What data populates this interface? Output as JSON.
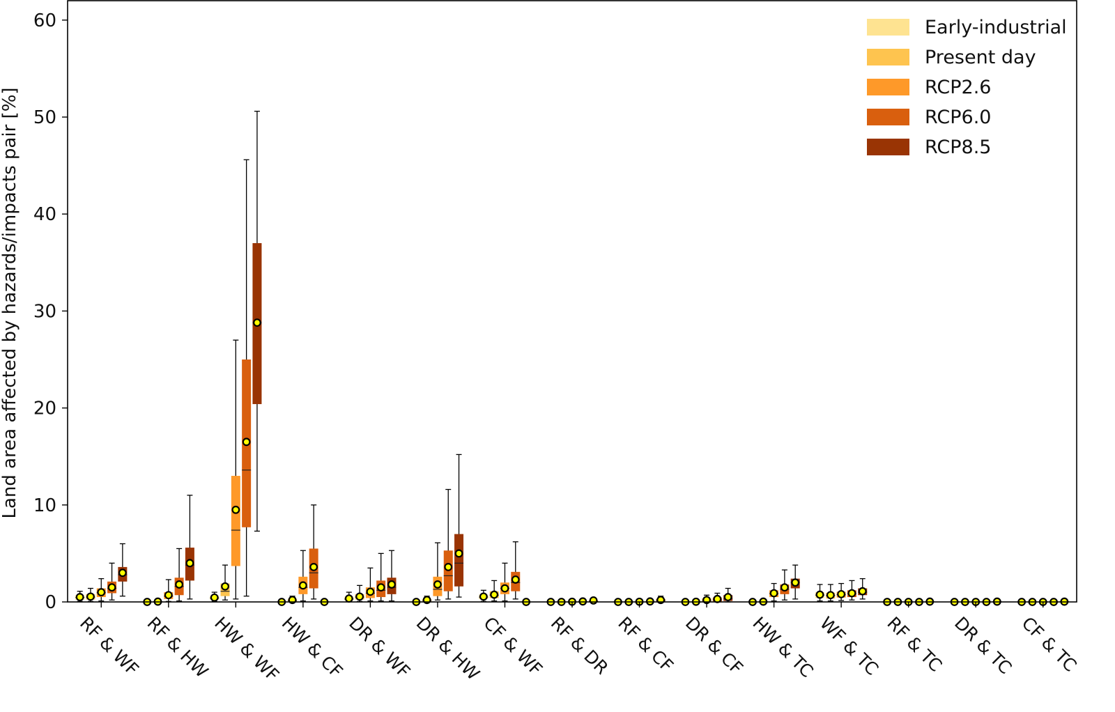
{
  "chart_data": {
    "type": "box",
    "title": "",
    "xlabel": "",
    "ylabel": "Land area affected by hazards/impacts pair [%]",
    "ylim": [
      0,
      62
    ],
    "yticks": [
      0,
      10,
      20,
      30,
      40,
      50,
      60
    ],
    "grid": false,
    "legend_position": "top-right",
    "categories": [
      "RF & WF",
      "RF & HW",
      "HW & WF",
      "HW & CF",
      "DR & WF",
      "DR & HW",
      "CF & WF",
      "RF & DR",
      "RF & CF",
      "DR & CF",
      "HW & TC",
      "WF & TC",
      "RF & TC",
      "DR & TC",
      "CF & TC"
    ],
    "series": [
      {
        "name": "Early-industrial",
        "color": "#fee391",
        "boxes": [
          {
            "whislo": 0.05,
            "q1": 0.2,
            "med": 0.45,
            "q3": 0.7,
            "whishi": 1.1,
            "mean": 0.5
          },
          {
            "whislo": 0,
            "q1": 0,
            "med": 0,
            "q3": 0,
            "whishi": 0.05,
            "mean": 0
          },
          {
            "whislo": 0.05,
            "q1": 0.2,
            "med": 0.4,
            "q3": 0.65,
            "whishi": 1.0,
            "mean": 0.45
          },
          {
            "whislo": 0,
            "q1": 0,
            "med": 0,
            "q3": 0,
            "whishi": 0.05,
            "mean": 0
          },
          {
            "whislo": 0.05,
            "q1": 0.15,
            "med": 0.3,
            "q3": 0.55,
            "whishi": 1.0,
            "mean": 0.35
          },
          {
            "whislo": 0,
            "q1": 0,
            "med": 0,
            "q3": 0.02,
            "whishi": 0.05,
            "mean": 0
          },
          {
            "whislo": 0.05,
            "q1": 0.3,
            "med": 0.5,
            "q3": 0.75,
            "whishi": 1.2,
            "mean": 0.55
          },
          {
            "whislo": 0,
            "q1": 0,
            "med": 0,
            "q3": 0,
            "whishi": 0.02,
            "mean": 0
          },
          {
            "whislo": 0,
            "q1": 0,
            "med": 0,
            "q3": 0,
            "whishi": 0.02,
            "mean": 0
          },
          {
            "whislo": 0,
            "q1": 0,
            "med": 0,
            "q3": 0,
            "whishi": 0.02,
            "mean": 0
          },
          {
            "whislo": 0,
            "q1": 0,
            "med": 0,
            "q3": 0,
            "whishi": 0.05,
            "mean": 0
          },
          {
            "whislo": 0.1,
            "q1": 0.4,
            "med": 0.7,
            "q3": 1.0,
            "whishi": 1.8,
            "mean": 0.75
          },
          {
            "whislo": 0,
            "q1": 0,
            "med": 0,
            "q3": 0,
            "whishi": 0.02,
            "mean": 0
          },
          {
            "whislo": 0,
            "q1": 0,
            "med": 0,
            "q3": 0,
            "whishi": 0.02,
            "mean": 0
          },
          {
            "whislo": 0,
            "q1": 0,
            "med": 0,
            "q3": 0,
            "whishi": 0.02,
            "mean": 0
          }
        ]
      },
      {
        "name": "Present day",
        "color": "#fec44f",
        "boxes": [
          {
            "whislo": 0.05,
            "q1": 0.25,
            "med": 0.5,
            "q3": 0.8,
            "whishi": 1.4,
            "mean": 0.55
          },
          {
            "whislo": 0,
            "q1": 0,
            "med": 0.02,
            "q3": 0.05,
            "whishi": 0.15,
            "mean": 0.03
          },
          {
            "whislo": 0.2,
            "q1": 0.6,
            "med": 1.1,
            "q3": 1.9,
            "whishi": 3.8,
            "mean": 1.6
          },
          {
            "whislo": 0,
            "q1": 0.05,
            "med": 0.15,
            "q3": 0.3,
            "whishi": 0.6,
            "mean": 0.2
          },
          {
            "whislo": 0.05,
            "q1": 0.25,
            "med": 0.5,
            "q3": 0.8,
            "whishi": 1.7,
            "mean": 0.55
          },
          {
            "whislo": 0,
            "q1": 0.05,
            "med": 0.15,
            "q3": 0.3,
            "whishi": 0.6,
            "mean": 0.2
          },
          {
            "whislo": 0.1,
            "q1": 0.4,
            "med": 0.7,
            "q3": 1.1,
            "whishi": 2.2,
            "mean": 0.75
          },
          {
            "whislo": 0,
            "q1": 0,
            "med": 0,
            "q3": 0,
            "whishi": 0.03,
            "mean": 0
          },
          {
            "whislo": 0,
            "q1": 0,
            "med": 0,
            "q3": 0,
            "whishi": 0.03,
            "mean": 0
          },
          {
            "whislo": 0,
            "q1": 0,
            "med": 0,
            "q3": 0.02,
            "whishi": 0.05,
            "mean": 0.02
          },
          {
            "whislo": 0,
            "q1": 0,
            "med": 0.02,
            "q3": 0.05,
            "whishi": 0.15,
            "mean": 0.03
          },
          {
            "whislo": 0.1,
            "q1": 0.35,
            "med": 0.65,
            "q3": 0.95,
            "whishi": 1.8,
            "mean": 0.7
          },
          {
            "whislo": 0,
            "q1": 0,
            "med": 0,
            "q3": 0,
            "whishi": 0.02,
            "mean": 0
          },
          {
            "whislo": 0,
            "q1": 0,
            "med": 0,
            "q3": 0,
            "whishi": 0.02,
            "mean": 0
          },
          {
            "whislo": 0,
            "q1": 0,
            "med": 0,
            "q3": 0,
            "whishi": 0.02,
            "mean": 0
          }
        ]
      },
      {
        "name": "RCP2.6",
        "color": "#fe9929",
        "boxes": [
          {
            "whislo": 0.1,
            "q1": 0.5,
            "med": 0.95,
            "q3": 1.4,
            "whishi": 2.4,
            "mean": 1.0
          },
          {
            "whislo": 0.05,
            "q1": 0.3,
            "med": 0.6,
            "q3": 1.0,
            "whishi": 2.3,
            "mean": 0.7
          },
          {
            "whislo": 0.3,
            "q1": 3.7,
            "med": 7.4,
            "q3": 13.0,
            "whishi": 27.0,
            "mean": 9.5
          },
          {
            "whislo": 0.1,
            "q1": 0.8,
            "med": 1.5,
            "q3": 2.6,
            "whishi": 5.3,
            "mean": 1.7
          },
          {
            "whislo": 0.1,
            "q1": 0.4,
            "med": 0.9,
            "q3": 1.5,
            "whishi": 3.5,
            "mean": 1.05
          },
          {
            "whislo": 0.2,
            "q1": 0.6,
            "med": 1.3,
            "q3": 2.6,
            "whishi": 6.1,
            "mean": 1.8
          },
          {
            "whislo": 0.1,
            "q1": 0.8,
            "med": 1.4,
            "q3": 2.0,
            "whishi": 4.0,
            "mean": 1.4
          },
          {
            "whislo": 0,
            "q1": 0,
            "med": 0,
            "q3": 0.02,
            "whishi": 0.05,
            "mean": 0.02
          },
          {
            "whislo": 0,
            "q1": 0,
            "med": 0,
            "q3": 0.02,
            "whishi": 0.05,
            "mean": 0.02
          },
          {
            "whislo": 0,
            "q1": 0.05,
            "med": 0.15,
            "q3": 0.35,
            "whishi": 0.7,
            "mean": 0.2
          },
          {
            "whislo": 0.1,
            "q1": 0.5,
            "med": 0.85,
            "q3": 1.2,
            "whishi": 1.9,
            "mean": 0.9
          },
          {
            "whislo": 0.15,
            "q1": 0.45,
            "med": 0.75,
            "q3": 1.05,
            "whishi": 1.9,
            "mean": 0.8
          },
          {
            "whislo": 0,
            "q1": 0,
            "med": 0,
            "q3": 0,
            "whishi": 0.02,
            "mean": 0
          },
          {
            "whislo": 0,
            "q1": 0,
            "med": 0,
            "q3": 0,
            "whishi": 0.02,
            "mean": 0
          },
          {
            "whislo": 0,
            "q1": 0,
            "med": 0,
            "q3": 0,
            "whishi": 0.02,
            "mean": 0
          }
        ]
      },
      {
        "name": "RCP6.0",
        "color": "#d95f0e",
        "boxes": [
          {
            "whislo": 0.2,
            "q1": 0.9,
            "med": 1.4,
            "q3": 2.1,
            "whishi": 4.0,
            "mean": 1.5
          },
          {
            "whislo": 0.1,
            "q1": 0.7,
            "med": 1.6,
            "q3": 2.5,
            "whishi": 5.5,
            "mean": 1.8
          },
          {
            "whislo": 0.6,
            "q1": 7.7,
            "med": 13.6,
            "q3": 25.0,
            "whishi": 45.6,
            "mean": 16.5
          },
          {
            "whislo": 0.3,
            "q1": 1.4,
            "med": 3.0,
            "q3": 5.5,
            "whishi": 10.0,
            "mean": 3.6
          },
          {
            "whislo": 0.1,
            "q1": 0.5,
            "med": 1.2,
            "q3": 2.2,
            "whishi": 5.0,
            "mean": 1.5
          },
          {
            "whislo": 0.3,
            "q1": 1.1,
            "med": 2.7,
            "q3": 5.3,
            "whishi": 11.6,
            "mean": 3.6
          },
          {
            "whislo": 0.3,
            "q1": 1.1,
            "med": 2.0,
            "q3": 3.1,
            "whishi": 6.2,
            "mean": 2.3
          },
          {
            "whislo": 0,
            "q1": 0,
            "med": 0.02,
            "q3": 0.05,
            "whishi": 0.15,
            "mean": 0.05
          },
          {
            "whislo": 0,
            "q1": 0,
            "med": 0.02,
            "q3": 0.05,
            "whishi": 0.15,
            "mean": 0.05
          },
          {
            "whislo": 0,
            "q1": 0.05,
            "med": 0.2,
            "q3": 0.45,
            "whishi": 0.9,
            "mean": 0.3
          },
          {
            "whislo": 0.2,
            "q1": 0.8,
            "med": 1.3,
            "q3": 1.8,
            "whishi": 3.3,
            "mean": 1.5
          },
          {
            "whislo": 0.2,
            "q1": 0.5,
            "med": 0.85,
            "q3": 1.2,
            "whishi": 2.2,
            "mean": 0.9
          },
          {
            "whislo": 0,
            "q1": 0,
            "med": 0,
            "q3": 0,
            "whishi": 0.02,
            "mean": 0
          },
          {
            "whislo": 0,
            "q1": 0,
            "med": 0,
            "q3": 0,
            "whishi": 0.02,
            "mean": 0
          },
          {
            "whislo": 0,
            "q1": 0,
            "med": 0,
            "q3": 0,
            "whishi": 0.02,
            "mean": 0
          }
        ]
      },
      {
        "name": "RCP8.5",
        "color": "#993404",
        "boxes": [
          {
            "whislo": 0.6,
            "q1": 2.1,
            "med": 2.8,
            "q3": 3.6,
            "whishi": 6.0,
            "mean": 3.0
          },
          {
            "whislo": 0.3,
            "q1": 2.2,
            "med": 3.8,
            "q3": 5.6,
            "whishi": 11.0,
            "mean": 4.0
          },
          {
            "whislo": 7.3,
            "q1": 20.4,
            "med": 28.8,
            "q3": 37.0,
            "whishi": 50.6,
            "mean": 28.8
          },
          {
            "whislo": 0,
            "q1": 0,
            "med": 0,
            "q3": 0,
            "whishi": 0,
            "mean": 0
          },
          {
            "whislo": 0.1,
            "q1": 0.8,
            "med": 1.5,
            "q3": 2.5,
            "whishi": 5.3,
            "mean": 1.8
          },
          {
            "whislo": 0.5,
            "q1": 1.6,
            "med": 4.0,
            "q3": 7.0,
            "whishi": 15.2,
            "mean": 5.0
          },
          {
            "whislo": 0,
            "q1": 0,
            "med": 0,
            "q3": 0,
            "whishi": 0,
            "mean": 0
          },
          {
            "whislo": 0,
            "q1": 0.02,
            "med": 0.05,
            "q3": 0.15,
            "whishi": 0.4,
            "mean": 0.15
          },
          {
            "whislo": 0,
            "q1": 0.05,
            "med": 0.15,
            "q3": 0.3,
            "whishi": 0.6,
            "mean": 0.2
          },
          {
            "whislo": 0,
            "q1": 0.1,
            "med": 0.35,
            "q3": 0.7,
            "whishi": 1.4,
            "mean": 0.5
          },
          {
            "whislo": 0.3,
            "q1": 1.4,
            "med": 2.0,
            "q3": 2.4,
            "whishi": 3.8,
            "mean": 2.0
          },
          {
            "whislo": 0.3,
            "q1": 0.7,
            "med": 1.0,
            "q3": 1.4,
            "whishi": 2.4,
            "mean": 1.1
          },
          {
            "whislo": 0,
            "q1": 0,
            "med": 0.02,
            "q3": 0.05,
            "whishi": 0.1,
            "mean": 0.03
          },
          {
            "whislo": 0,
            "q1": 0,
            "med": 0.02,
            "q3": 0.05,
            "whishi": 0.1,
            "mean": 0.03
          },
          {
            "whislo": 0,
            "q1": 0,
            "med": 0.02,
            "q3": 0.05,
            "whishi": 0.1,
            "mean": 0.03
          }
        ]
      }
    ],
    "mean_marker": {
      "fill": "#ffff00",
      "edge": "#000000"
    }
  }
}
